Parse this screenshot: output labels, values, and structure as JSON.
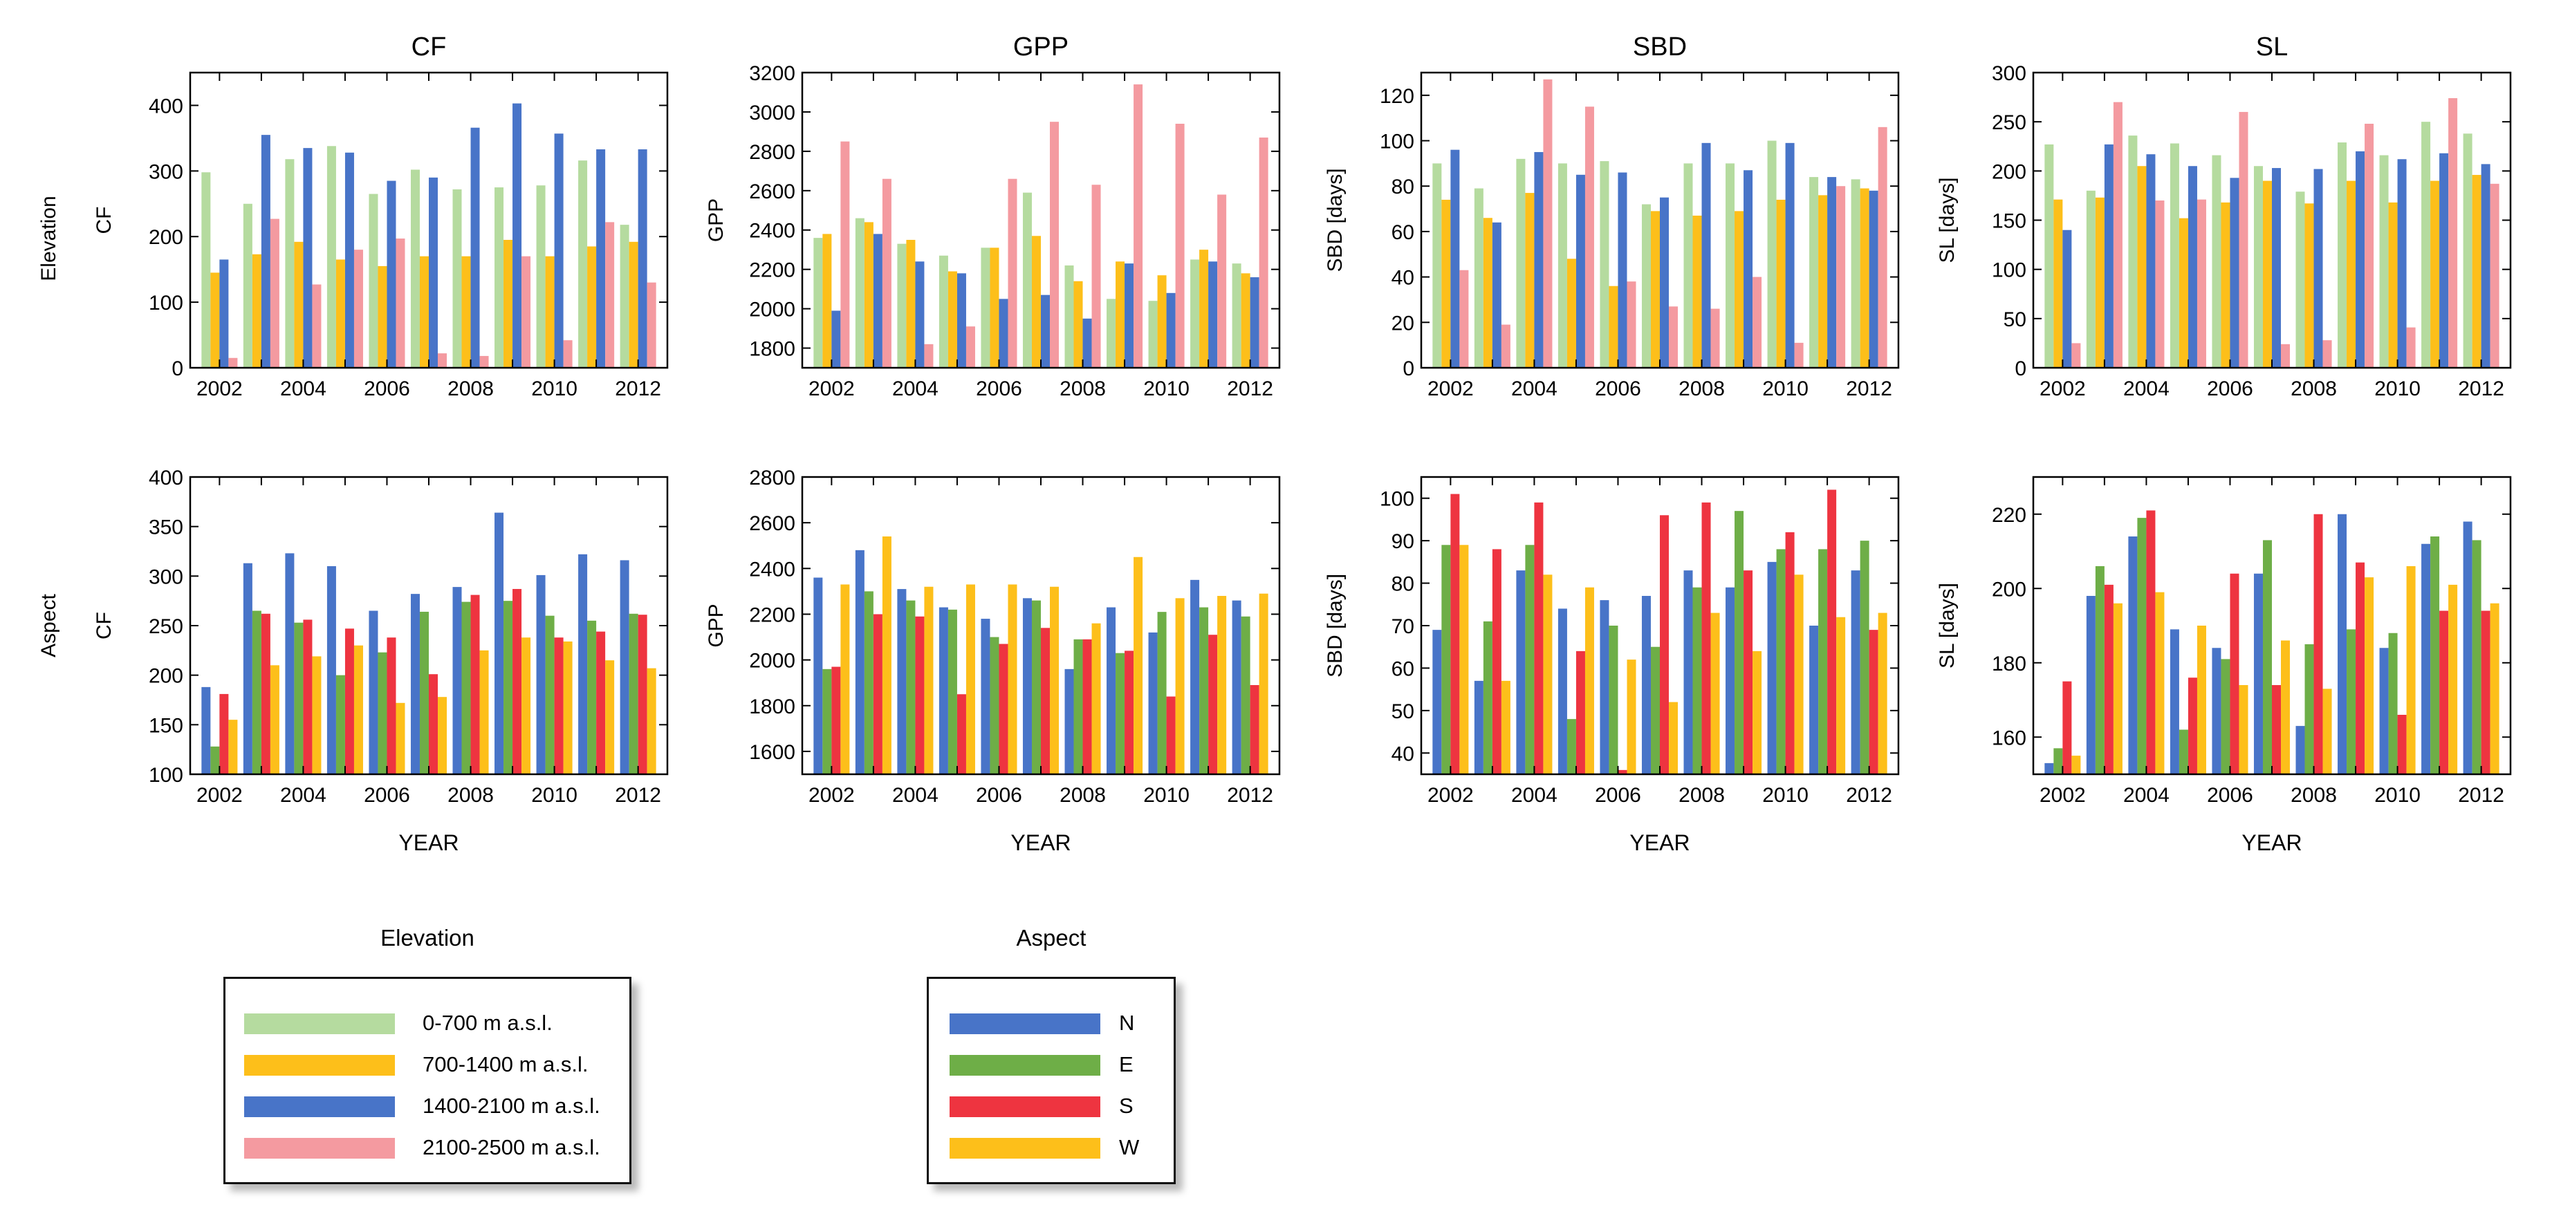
{
  "colors": {
    "elev_0_700": "#b5db9f",
    "elev_700_1400": "#fdbf1a",
    "elev_1400_2100": "#4874c8",
    "elev_2100_2500": "#f49aa0",
    "aspect_N": "#4874c8",
    "aspect_E": "#6eae47",
    "aspect_S": "#ee3440",
    "aspect_W": "#fdbf1a"
  },
  "row_labels": {
    "top": "Elevation",
    "bottom": "Aspect"
  },
  "legends": {
    "elevation": {
      "title": "Elevation",
      "items": [
        {
          "label": "0-700 m a.s.l.",
          "color_key": "elev_0_700"
        },
        {
          "label": "700-1400 m a.s.l.",
          "color_key": "elev_700_1400"
        },
        {
          "label": "1400-2100 m a.s.l.",
          "color_key": "elev_1400_2100"
        },
        {
          "label": "2100-2500 m a.s.l.",
          "color_key": "elev_2100_2500"
        }
      ]
    },
    "aspect": {
      "title": "Aspect",
      "items": [
        {
          "label": "N",
          "color_key": "aspect_N"
        },
        {
          "label": "E",
          "color_key": "aspect_E"
        },
        {
          "label": "S",
          "color_key": "aspect_S"
        },
        {
          "label": "W",
          "color_key": "aspect_W"
        }
      ]
    }
  },
  "chart_data": [
    {
      "type": "bar",
      "title": "CF",
      "xlabel": "",
      "ylabel": "CF",
      "ylim": [
        0,
        450
      ],
      "yticks": [
        0,
        100,
        200,
        300,
        400
      ],
      "categories": [
        "2002",
        "2003",
        "2004",
        "2005",
        "2006",
        "2007",
        "2008",
        "2009",
        "2010",
        "2011",
        "2012"
      ],
      "xtick_labels": [
        "2002",
        "2004",
        "2006",
        "2008",
        "2010",
        "2012"
      ],
      "series": [
        {
          "name": "0-700 m a.s.l.",
          "color_key": "elev_0_700",
          "values": [
            298,
            250,
            318,
            338,
            265,
            302,
            272,
            275,
            278,
            316,
            218
          ]
        },
        {
          "name": "700-1400 m a.s.l.",
          "color_key": "elev_700_1400",
          "values": [
            145,
            173,
            192,
            165,
            155,
            170,
            170,
            195,
            170,
            185,
            192
          ]
        },
        {
          "name": "1400-2100 m a.s.l.",
          "color_key": "elev_1400_2100",
          "values": [
            165,
            355,
            335,
            328,
            285,
            290,
            366,
            403,
            357,
            333,
            333
          ]
        },
        {
          "name": "2100-2500 m a.s.l.",
          "color_key": "elev_2100_2500",
          "values": [
            15,
            227,
            127,
            180,
            197,
            22,
            18,
            170,
            42,
            222,
            130
          ]
        }
      ]
    },
    {
      "type": "bar",
      "title": "GPP",
      "xlabel": "",
      "ylabel": "GPP",
      "ylim": [
        1700,
        3200
      ],
      "yticks": [
        1800,
        2000,
        2200,
        2400,
        2600,
        2800,
        3000,
        3200
      ],
      "categories": [
        "2002",
        "2003",
        "2004",
        "2005",
        "2006",
        "2007",
        "2008",
        "2009",
        "2010",
        "2011",
        "2012"
      ],
      "xtick_labels": [
        "2002",
        "2004",
        "2006",
        "2008",
        "2010",
        "2012"
      ],
      "series": [
        {
          "name": "0-700 m a.s.l.",
          "color_key": "elev_0_700",
          "values": [
            2360,
            2460,
            2330,
            2270,
            2310,
            2590,
            2220,
            2050,
            2040,
            2250,
            2230
          ]
        },
        {
          "name": "700-1400 m a.s.l.",
          "color_key": "elev_700_1400",
          "values": [
            2380,
            2440,
            2350,
            2190,
            2310,
            2370,
            2140,
            2240,
            2170,
            2300,
            2180
          ]
        },
        {
          "name": "1400-2100 m a.s.l.",
          "color_key": "elev_1400_2100",
          "values": [
            1990,
            2380,
            2240,
            2180,
            2050,
            2070,
            1950,
            2230,
            2080,
            2240,
            2160
          ]
        },
        {
          "name": "2100-2500 m a.s.l.",
          "color_key": "elev_2100_2500",
          "values": [
            2850,
            2660,
            1820,
            1910,
            2660,
            2950,
            2630,
            3140,
            2940,
            2580,
            2870
          ]
        }
      ]
    },
    {
      "type": "bar",
      "title": "SBD",
      "xlabel": "",
      "ylabel": "SBD [days]",
      "ylim": [
        0,
        130
      ],
      "yticks": [
        0,
        20,
        40,
        60,
        80,
        100,
        120
      ],
      "categories": [
        "2002",
        "2003",
        "2004",
        "2005",
        "2006",
        "2007",
        "2008",
        "2009",
        "2010",
        "2011",
        "2012"
      ],
      "xtick_labels": [
        "2002",
        "2004",
        "2006",
        "2008",
        "2010",
        "2012"
      ],
      "series": [
        {
          "name": "0-700 m a.s.l.",
          "color_key": "elev_0_700",
          "values": [
            90,
            79,
            92,
            90,
            91,
            72,
            90,
            90,
            100,
            84,
            83
          ]
        },
        {
          "name": "700-1400 m a.s.l.",
          "color_key": "elev_700_1400",
          "values": [
            74,
            66,
            77,
            48,
            36,
            69,
            67,
            69,
            74,
            76,
            79
          ]
        },
        {
          "name": "1400-2100 m a.s.l.",
          "color_key": "elev_1400_2100",
          "values": [
            96,
            64,
            95,
            85,
            86,
            75,
            99,
            87,
            99,
            84,
            78
          ]
        },
        {
          "name": "2100-2500 m a.s.l.",
          "color_key": "elev_2100_2500",
          "values": [
            43,
            19,
            127,
            115,
            38,
            27,
            26,
            40,
            11,
            80,
            106
          ]
        }
      ]
    },
    {
      "type": "bar",
      "title": "SL",
      "xlabel": "",
      "ylabel": "SL [days]",
      "ylim": [
        0,
        300
      ],
      "yticks": [
        0,
        50,
        100,
        150,
        200,
        250,
        300
      ],
      "categories": [
        "2002",
        "2003",
        "2004",
        "2005",
        "2006",
        "2007",
        "2008",
        "2009",
        "2010",
        "2011",
        "2012"
      ],
      "xtick_labels": [
        "2002",
        "2004",
        "2006",
        "2008",
        "2010",
        "2012"
      ],
      "series": [
        {
          "name": "0-700 m a.s.l.",
          "color_key": "elev_0_700",
          "values": [
            227,
            180,
            236,
            228,
            216,
            205,
            179,
            229,
            216,
            250,
            238
          ]
        },
        {
          "name": "700-1400 m a.s.l.",
          "color_key": "elev_700_1400",
          "values": [
            171,
            173,
            205,
            152,
            168,
            190,
            167,
            190,
            168,
            190,
            196
          ]
        },
        {
          "name": "1400-2100 m a.s.l.",
          "color_key": "elev_1400_2100",
          "values": [
            140,
            227,
            217,
            205,
            193,
            203,
            202,
            220,
            212,
            218,
            207
          ]
        },
        {
          "name": "2100-2500 m a.s.l.",
          "color_key": "elev_2100_2500",
          "values": [
            25,
            270,
            170,
            171,
            260,
            24,
            28,
            248,
            41,
            274,
            187
          ]
        }
      ]
    },
    {
      "type": "bar",
      "title": "",
      "xlabel": "YEAR",
      "ylabel": "CF",
      "ylim": [
        100,
        400
      ],
      "yticks": [
        100,
        150,
        200,
        250,
        300,
        350,
        400
      ],
      "categories": [
        "2002",
        "2003",
        "2004",
        "2005",
        "2006",
        "2007",
        "2008",
        "2009",
        "2010",
        "2011",
        "2012"
      ],
      "xtick_labels": [
        "2002",
        "2004",
        "2006",
        "2008",
        "2010",
        "2012"
      ],
      "series": [
        {
          "name": "N",
          "color_key": "aspect_N",
          "values": [
            188,
            313,
            323,
            310,
            265,
            282,
            289,
            364,
            301,
            322,
            316
          ]
        },
        {
          "name": "E",
          "color_key": "aspect_E",
          "values": [
            128,
            265,
            253,
            200,
            223,
            264,
            274,
            275,
            260,
            255,
            262
          ]
        },
        {
          "name": "S",
          "color_key": "aspect_S",
          "values": [
            181,
            262,
            256,
            247,
            238,
            201,
            281,
            287,
            238,
            244,
            261
          ]
        },
        {
          "name": "W",
          "color_key": "aspect_W",
          "values": [
            155,
            210,
            219,
            230,
            172,
            178,
            225,
            238,
            234,
            215,
            207
          ]
        }
      ]
    },
    {
      "type": "bar",
      "title": "",
      "xlabel": "YEAR",
      "ylabel": "GPP",
      "ylim": [
        1500,
        2800
      ],
      "yticks": [
        1600,
        1800,
        2000,
        2200,
        2400,
        2600,
        2800
      ],
      "categories": [
        "2002",
        "2003",
        "2004",
        "2005",
        "2006",
        "2007",
        "2008",
        "2009",
        "2010",
        "2011",
        "2012"
      ],
      "xtick_labels": [
        "2002",
        "2004",
        "2006",
        "2008",
        "2010",
        "2012"
      ],
      "series": [
        {
          "name": "N",
          "color_key": "aspect_N",
          "values": [
            2360,
            2480,
            2310,
            2230,
            2180,
            2270,
            1960,
            2230,
            2120,
            2350,
            2260
          ]
        },
        {
          "name": "E",
          "color_key": "aspect_E",
          "values": [
            1960,
            2300,
            2260,
            2220,
            2100,
            2260,
            2090,
            2030,
            2210,
            2230,
            2190
          ]
        },
        {
          "name": "S",
          "color_key": "aspect_S",
          "values": [
            1970,
            2200,
            2190,
            1850,
            2070,
            2140,
            2090,
            2040,
            1840,
            2110,
            1890
          ]
        },
        {
          "name": "W",
          "color_key": "aspect_W",
          "values": [
            2330,
            2540,
            2320,
            2330,
            2330,
            2320,
            2160,
            2450,
            2270,
            2280,
            2290
          ]
        }
      ]
    },
    {
      "type": "bar",
      "title": "",
      "xlabel": "YEAR",
      "ylabel": "SBD [days]",
      "ylim": [
        35,
        105
      ],
      "yticks": [
        40,
        50,
        60,
        70,
        80,
        90,
        100
      ],
      "categories": [
        "2002",
        "2003",
        "2004",
        "2005",
        "2006",
        "2007",
        "2008",
        "2009",
        "2010",
        "2011",
        "2012"
      ],
      "xtick_labels": [
        "2002",
        "2004",
        "2006",
        "2008",
        "2010",
        "2012"
      ],
      "series": [
        {
          "name": "N",
          "color_key": "aspect_N",
          "values": [
            69,
            57,
            83,
            74,
            76,
            77,
            83,
            79,
            85,
            70,
            83
          ]
        },
        {
          "name": "E",
          "color_key": "aspect_E",
          "values": [
            89,
            71,
            89,
            48,
            70,
            65,
            79,
            97,
            88,
            88,
            90
          ]
        },
        {
          "name": "S",
          "color_key": "aspect_S",
          "values": [
            101,
            88,
            99,
            64,
            36,
            96,
            99,
            83,
            92,
            102,
            69
          ]
        },
        {
          "name": "W",
          "color_key": "aspect_W",
          "values": [
            89,
            57,
            82,
            79,
            62,
            52,
            73,
            64,
            82,
            72,
            73
          ]
        }
      ]
    },
    {
      "type": "bar",
      "title": "",
      "xlabel": "YEAR",
      "ylabel": "SL [days]",
      "ylim": [
        150,
        230
      ],
      "yticks": [
        160,
        180,
        200,
        220
      ],
      "categories": [
        "2002",
        "2003",
        "2004",
        "2005",
        "2006",
        "2007",
        "2008",
        "2009",
        "2010",
        "2011",
        "2012"
      ],
      "xtick_labels": [
        "2002",
        "2004",
        "2006",
        "2008",
        "2010",
        "2012"
      ],
      "series": [
        {
          "name": "N",
          "color_key": "aspect_N",
          "values": [
            153,
            198,
            214,
            189,
            184,
            204,
            163,
            220,
            184,
            212,
            218
          ]
        },
        {
          "name": "E",
          "color_key": "aspect_E",
          "values": [
            157,
            206,
            219,
            162,
            181,
            213,
            185,
            189,
            188,
            214,
            213
          ]
        },
        {
          "name": "S",
          "color_key": "aspect_S",
          "values": [
            175,
            201,
            221,
            176,
            204,
            174,
            220,
            207,
            166,
            194,
            194
          ]
        },
        {
          "name": "W",
          "color_key": "aspect_W",
          "values": [
            155,
            196,
            199,
            190,
            174,
            186,
            173,
            203,
            206,
            201,
            196
          ]
        }
      ]
    }
  ]
}
